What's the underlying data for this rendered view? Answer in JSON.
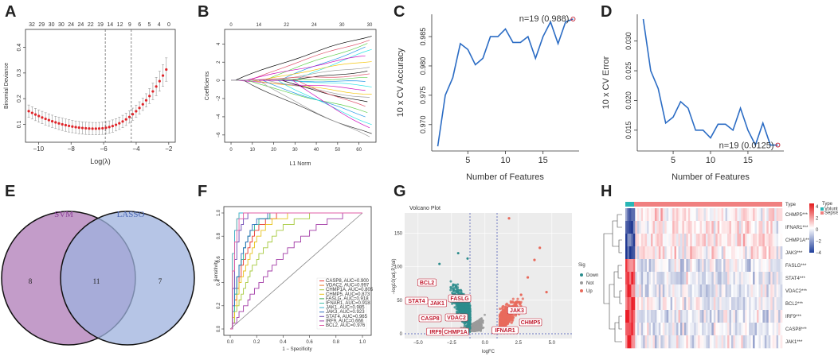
{
  "panel_labels": [
    "A",
    "B",
    "C",
    "D",
    "E",
    "F",
    "G",
    "H"
  ],
  "chart_data": [
    {
      "panel": "A",
      "type": "line",
      "xlabel": "Log(λ)",
      "ylabel": "Binomial Deviance",
      "x_ticks": [
        "−10",
        "−8",
        "−6",
        "−4",
        "−2"
      ],
      "y_ticks": [
        "0.1",
        "0.2",
        "0.3",
        "0.4"
      ],
      "top_ticks": [
        "32",
        "29",
        "30",
        "30",
        "24",
        "24",
        "22",
        "19",
        "14",
        "12",
        "9",
        "6",
        "5",
        "4",
        "0"
      ],
      "xlim": [
        -10.8,
        -1.6
      ],
      "ylim": [
        0.03,
        0.47
      ],
      "vlines": [
        -5.9,
        -4.3
      ]
    },
    {
      "panel": "B",
      "type": "line",
      "xlabel": "L1 Norm",
      "ylabel": "Coefficients",
      "x_ticks": [
        "0",
        "10",
        "20",
        "30",
        "40",
        "50",
        "60"
      ],
      "y_ticks": [
        "4",
        "2",
        "0",
        "−2",
        "−4",
        "−6"
      ],
      "top_ticks": [
        "0",
        "14",
        "22",
        "24",
        "30",
        "30"
      ],
      "xlim": [
        -3,
        68
      ],
      "ylim": [
        -6.8,
        5.6
      ]
    },
    {
      "panel": "C",
      "type": "line",
      "xlabel": "Number of Features",
      "ylabel": "10 x CV Accuracy",
      "x": [
        1,
        2,
        3,
        4,
        5,
        6,
        7,
        8,
        9,
        10,
        11,
        12,
        13,
        14,
        15,
        16,
        17,
        18,
        19
      ],
      "y": [
        0.9663,
        0.975,
        0.978,
        0.9838,
        0.9828,
        0.9802,
        0.9813,
        0.985,
        0.985,
        0.9863,
        0.984,
        0.984,
        0.985,
        0.9813,
        0.985,
        0.9875,
        0.9838,
        0.9875,
        0.988
      ],
      "x_ticks": [
        "5",
        "10",
        "15"
      ],
      "y_ticks": [
        "0.970",
        "0.975",
        "0.980",
        "0.985"
      ],
      "xlim": [
        0.2,
        19.8
      ],
      "ylim": [
        0.9655,
        0.9888
      ],
      "annotation": "n=19 (0.988)"
    },
    {
      "panel": "D",
      "type": "line",
      "xlabel": "Number of Features",
      "ylabel": "10 x CV Error",
      "x": [
        1,
        2,
        3,
        4,
        5,
        6,
        7,
        8,
        9,
        10,
        11,
        12,
        13,
        14,
        15,
        16,
        17,
        18,
        19
      ],
      "y": [
        0.0337,
        0.025,
        0.022,
        0.0162,
        0.0172,
        0.0198,
        0.0187,
        0.015,
        0.015,
        0.0137,
        0.016,
        0.016,
        0.015,
        0.0187,
        0.015,
        0.0125,
        0.0162,
        0.0125,
        0.0125
      ],
      "x_ticks": [
        "5",
        "10",
        "15"
      ],
      "y_ticks": [
        "0.015",
        "0.020",
        "0.025",
        "0.030"
      ],
      "xlim": [
        0.2,
        19.8
      ],
      "ylim": [
        0.0115,
        0.0345
      ],
      "annotation": "n=19 (0.0125)"
    },
    {
      "panel": "F",
      "type": "line",
      "xlabel": "1 − Specificity",
      "ylabel": "Sensitivity",
      "x_ticks": [
        "0.0",
        "0.2",
        "0.4",
        "0.6",
        "0.8",
        "1.0"
      ],
      "y_ticks": [
        "0.0",
        "0.2",
        "0.4",
        "0.6",
        "0.8",
        "1.0"
      ],
      "series": [
        {
          "name": "CASP8, AUC=0.900",
          "color": "#e8372e"
        },
        {
          "name": "VDAC2, AUC=0.997",
          "color": "#ef7f2b"
        },
        {
          "name": "CHMP1A, AUC=0.805",
          "color": "#a6c93d"
        },
        {
          "name": "CHMP5, AUC=0.873",
          "color": "#e8c21a"
        },
        {
          "name": "FASLG, AUC=0.918",
          "color": "#3aa64a"
        },
        {
          "name": "IFNAR1, AUC=0.918",
          "color": "#40bfa8"
        },
        {
          "name": "JAK1, AUC=0.985",
          "color": "#3ab7d6"
        },
        {
          "name": "JAK3, AUC=0.923",
          "color": "#2d6fc0"
        },
        {
          "name": "STAT4, AUC=0.965",
          "color": "#6d48b4"
        },
        {
          "name": "IRF9, AUC=0.666",
          "color": "#a23aa6"
        },
        {
          "name": "BCL2, AUC=0.976",
          "color": "#e05da5"
        }
      ]
    },
    {
      "panel": "G",
      "type": "scatter",
      "title": "Volcano Plot",
      "xlabel": "logFC",
      "ylabel": "−log10(adj.P.Val)",
      "x_ticks": [
        "−5.0",
        "−2.5",
        "0.0",
        "2.5",
        "5.0"
      ],
      "y_ticks": [
        "0",
        "50",
        "100",
        "150"
      ],
      "legend_title": "Sig",
      "legend": [
        {
          "name": "Down",
          "color": "#2a8c8c"
        },
        {
          "name": "Not",
          "color": "#9a9a9a"
        },
        {
          "name": "Up",
          "color": "#e86a5c"
        }
      ],
      "labels": [
        "BCL2",
        "STAT4",
        "JAK1",
        "FASLG",
        "CASP8",
        "VDAC2",
        "IRF9",
        "CHMP1A",
        "IFNAR1",
        "JAK3",
        "CHMP5"
      ]
    },
    {
      "panel": "H",
      "type": "heatmap",
      "legend_title": "Type",
      "type_legend": [
        {
          "name": "Volunteer",
          "color": "#29b6b6"
        },
        {
          "name": "Sepsis",
          "color": "#f08080"
        }
      ],
      "color_scale_ticks": [
        "4",
        "2",
        "0",
        "−2",
        "−4"
      ],
      "rows": [
        "CHMP5***",
        "IFNAR1***",
        "CHMP1A***",
        "JAK3***",
        "FASLG***",
        "STAT4***",
        "VDAC2***",
        "BCL2***",
        "IRF9***",
        "CASP8***",
        "JAK1***"
      ],
      "type_label": "Type"
    }
  ],
  "venn": {
    "left_label": "SVM",
    "right_label": "LASSO",
    "left_only": "8",
    "overlap": "11",
    "right_only": "7"
  }
}
